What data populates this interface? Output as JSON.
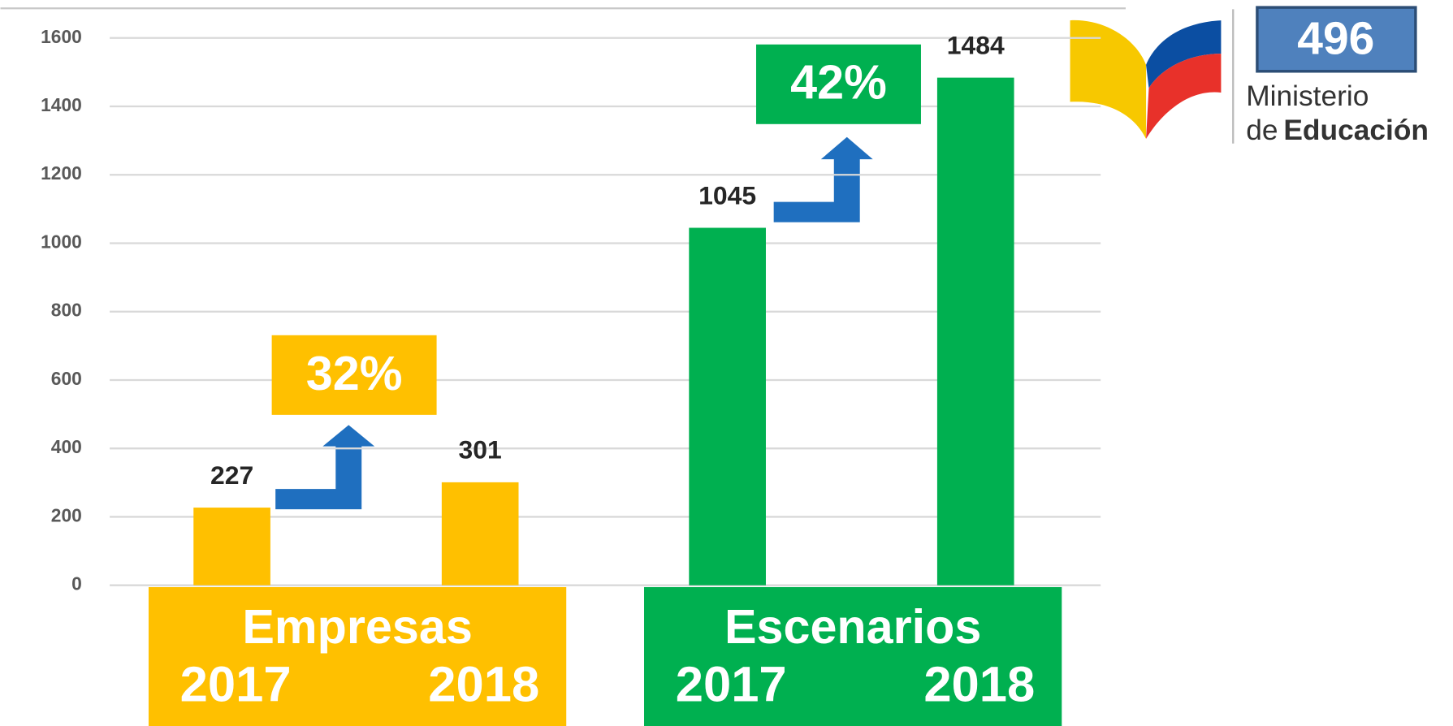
{
  "chart_data": {
    "type": "bar",
    "groups": [
      {
        "name": "Empresas",
        "color": "#FFC000",
        "categories": [
          "2017",
          "2018"
        ],
        "values": [
          227,
          301
        ],
        "change_label": "32%"
      },
      {
        "name": "Escenarios",
        "color": "#00B050",
        "categories": [
          "2017",
          "2018"
        ],
        "values": [
          1045,
          1484
        ],
        "change_label": "42%"
      }
    ],
    "ylim": [
      0,
      1600
    ],
    "yticks": [
      0,
      200,
      400,
      600,
      800,
      1000,
      1200,
      1400,
      1600
    ],
    "grid": true
  },
  "logo": {
    "number": "496",
    "line1": "Ministerio",
    "line2_prefix": "de",
    "line2_bold": "Educación"
  }
}
